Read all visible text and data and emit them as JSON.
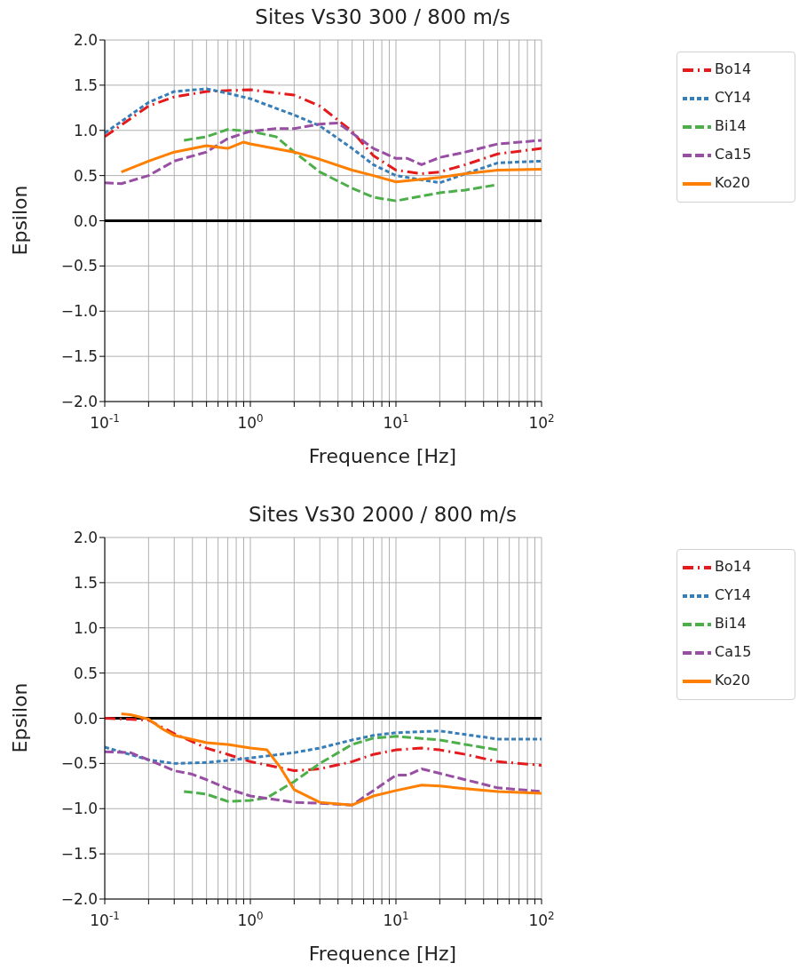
{
  "chart_data": [
    {
      "type": "line",
      "title": "Sites Vs30 300 / 800 m/s",
      "xlabel": "Frequence [Hz]",
      "ylabel": "Epsilon",
      "log": "x",
      "grid": true,
      "legend": "top right",
      "marker": "none",
      "xlim": [
        0.1,
        100
      ],
      "ylim": [
        -2,
        2
      ],
      "xticks": [
        {
          "value": 0.1,
          "label": "10$^{-1}$"
        },
        {
          "value": 0.2,
          "label": null
        },
        {
          "value": 0.3,
          "label": null
        },
        {
          "value": 0.4,
          "label": null
        },
        {
          "value": 0.5,
          "label": null
        },
        {
          "value": 0.6,
          "label": null
        },
        {
          "value": 0.7,
          "label": null
        },
        {
          "value": 0.8,
          "label": null
        },
        {
          "value": 0.9,
          "label": null
        },
        {
          "value": 1,
          "label": "10$^{0}$"
        },
        {
          "value": 2,
          "label": null
        },
        {
          "value": 3,
          "label": null
        },
        {
          "value": 4,
          "label": null
        },
        {
          "value": 5,
          "label": null
        },
        {
          "value": 6,
          "label": null
        },
        {
          "value": 7,
          "label": null
        },
        {
          "value": 8,
          "label": null
        },
        {
          "value": 9,
          "label": null
        },
        {
          "value": 10,
          "label": "10$^{1}$"
        },
        {
          "value": 20,
          "label": null
        },
        {
          "value": 30,
          "label": null
        },
        {
          "value": 40,
          "label": null
        },
        {
          "value": 50,
          "label": null
        },
        {
          "value": 60,
          "label": null
        },
        {
          "value": 70,
          "label": null
        },
        {
          "value": 80,
          "label": null
        },
        {
          "value": 90,
          "label": null
        },
        {
          "value": 100,
          "label": "10$^{2}$"
        }
      ],
      "yticks": [
        {
          "value": -2,
          "label": "−2.0"
        },
        {
          "value": -1.5,
          "label": "−1.5"
        },
        {
          "value": -1,
          "label": "−1.0"
        },
        {
          "value": -0.5,
          "label": "−0.5"
        },
        {
          "value": 0,
          "label": "0.0"
        },
        {
          "value": 0.5,
          "label": "0.5"
        },
        {
          "value": 1,
          "label": "1.0"
        },
        {
          "value": 1.5,
          "label": "1.5"
        },
        {
          "value": 2,
          "label": "2.0"
        }
      ],
      "ref_lines": [
        {
          "axis": "y",
          "value": 0,
          "label": null,
          "color": "#000000",
          "line_style": "solid"
        }
      ],
      "series": [
        {
          "name": "Bo14",
          "color": "#e41a1c",
          "line_style": "dashdot",
          "x": [
            0.1,
            0.2,
            0.3,
            0.5,
            1,
            2,
            3,
            5,
            7,
            10,
            15,
            20,
            30,
            50,
            100
          ],
          "values": [
            0.93,
            1.27,
            1.37,
            1.43,
            1.45,
            1.39,
            1.27,
            0.99,
            0.72,
            0.56,
            0.52,
            0.54,
            0.62,
            0.74,
            0.8
          ]
        },
        {
          "name": "CY14",
          "color": "#377eb8",
          "line_style": "dotted",
          "x": [
            0.1,
            0.2,
            0.3,
            0.5,
            0.7,
            1,
            2,
            3,
            5,
            7,
            10,
            20,
            30,
            50,
            100
          ],
          "values": [
            0.97,
            1.31,
            1.43,
            1.46,
            1.41,
            1.35,
            1.17,
            1.05,
            0.8,
            0.62,
            0.5,
            0.42,
            0.52,
            0.64,
            0.66
          ]
        },
        {
          "name": "Bi14",
          "color": "#4daf4a",
          "line_style": "dashed",
          "x": [
            0.35,
            0.5,
            0.7,
            1,
            1.5,
            2,
            3,
            5,
            7,
            10,
            20,
            30,
            50
          ],
          "values": [
            0.89,
            0.93,
            1.01,
            0.99,
            0.93,
            0.76,
            0.54,
            0.36,
            0.26,
            0.22,
            0.31,
            0.34,
            0.4
          ]
        },
        {
          "name": "Ca15",
          "color": "#984ea3",
          "line_style": "dashed",
          "x": [
            0.1,
            0.13,
            0.2,
            0.3,
            0.5,
            0.7,
            1,
            1.5,
            2,
            3,
            4,
            5,
            7,
            10,
            12,
            15,
            20,
            30,
            50,
            100
          ],
          "values": [
            0.42,
            0.41,
            0.5,
            0.66,
            0.76,
            0.91,
            0.99,
            1.02,
            1.02,
            1.07,
            1.08,
            0.97,
            0.8,
            0.69,
            0.69,
            0.62,
            0.7,
            0.76,
            0.85,
            0.89
          ]
        },
        {
          "name": "Ko20",
          "color": "#ff7f00",
          "line_style": "solid",
          "x": [
            0.13,
            0.2,
            0.3,
            0.5,
            0.7,
            0.9,
            1,
            2,
            3,
            5,
            7,
            10,
            20,
            30,
            50,
            100
          ],
          "values": [
            0.54,
            0.66,
            0.76,
            0.83,
            0.8,
            0.87,
            0.85,
            0.76,
            0.68,
            0.56,
            0.5,
            0.43,
            0.48,
            0.52,
            0.56,
            0.57
          ]
        }
      ]
    },
    {
      "type": "line",
      "title": "Sites Vs30 2000 / 800 m/s",
      "xlabel": "Frequence [Hz]",
      "ylabel": "Epsilon",
      "log": "x",
      "grid": true,
      "legend": "top right",
      "marker": "none",
      "xlim": [
        0.1,
        100
      ],
      "ylim": [
        -2,
        2
      ],
      "xticks": [
        {
          "value": 0.1,
          "label": "10$^{-1}$"
        },
        {
          "value": 0.2,
          "label": null
        },
        {
          "value": 0.3,
          "label": null
        },
        {
          "value": 0.4,
          "label": null
        },
        {
          "value": 0.5,
          "label": null
        },
        {
          "value": 0.6,
          "label": null
        },
        {
          "value": 0.7,
          "label": null
        },
        {
          "value": 0.8,
          "label": null
        },
        {
          "value": 0.9,
          "label": null
        },
        {
          "value": 1,
          "label": "10$^{0}$"
        },
        {
          "value": 2,
          "label": null
        },
        {
          "value": 3,
          "label": null
        },
        {
          "value": 4,
          "label": null
        },
        {
          "value": 5,
          "label": null
        },
        {
          "value": 6,
          "label": null
        },
        {
          "value": 7,
          "label": null
        },
        {
          "value": 8,
          "label": null
        },
        {
          "value": 9,
          "label": null
        },
        {
          "value": 10,
          "label": "10$^{1}$"
        },
        {
          "value": 20,
          "label": null
        },
        {
          "value": 30,
          "label": null
        },
        {
          "value": 40,
          "label": null
        },
        {
          "value": 50,
          "label": null
        },
        {
          "value": 60,
          "label": null
        },
        {
          "value": 70,
          "label": null
        },
        {
          "value": 80,
          "label": null
        },
        {
          "value": 90,
          "label": null
        },
        {
          "value": 100,
          "label": "10$^{2}$"
        }
      ],
      "yticks": [
        {
          "value": -2,
          "label": "−2.0"
        },
        {
          "value": -1.5,
          "label": "−1.5"
        },
        {
          "value": -1,
          "label": "−1.0"
        },
        {
          "value": -0.5,
          "label": "−0.5"
        },
        {
          "value": 0,
          "label": "0.0"
        },
        {
          "value": 0.5,
          "label": "0.5"
        },
        {
          "value": 1,
          "label": "1.0"
        },
        {
          "value": 1.5,
          "label": "1.5"
        },
        {
          "value": 2,
          "label": "2.0"
        }
      ],
      "ref_lines": [
        {
          "axis": "y",
          "value": 0,
          "label": null,
          "color": "#000000",
          "line_style": "solid"
        }
      ],
      "series": [
        {
          "name": "Bo14",
          "color": "#e41a1c",
          "line_style": "dashdot",
          "x": [
            0.1,
            0.2,
            0.3,
            0.5,
            0.7,
            1,
            2,
            3,
            5,
            7,
            10,
            15,
            20,
            30,
            50,
            100
          ],
          "values": [
            0,
            -0.02,
            -0.17,
            -0.33,
            -0.4,
            -0.48,
            -0.58,
            -0.56,
            -0.48,
            -0.4,
            -0.35,
            -0.33,
            -0.35,
            -0.4,
            -0.48,
            -0.52
          ]
        },
        {
          "name": "CY14",
          "color": "#377eb8",
          "line_style": "dotted",
          "x": [
            0.1,
            0.2,
            0.3,
            0.5,
            1,
            2,
            3,
            5,
            7,
            10,
            20,
            30,
            50,
            100
          ],
          "values": [
            -0.32,
            -0.46,
            -0.5,
            -0.49,
            -0.44,
            -0.38,
            -0.33,
            -0.24,
            -0.19,
            -0.16,
            -0.14,
            -0.18,
            -0.23,
            -0.23
          ]
        },
        {
          "name": "Bi14",
          "color": "#4daf4a",
          "line_style": "dashed",
          "x": [
            0.35,
            0.5,
            0.7,
            1,
            1.3,
            2,
            3,
            5,
            7,
            10,
            20,
            30,
            50
          ],
          "values": [
            -0.81,
            -0.84,
            -0.92,
            -0.91,
            -0.88,
            -0.7,
            -0.5,
            -0.29,
            -0.22,
            -0.2,
            -0.24,
            -0.29,
            -0.35
          ]
        },
        {
          "name": "Ca15",
          "color": "#984ea3",
          "line_style": "dashed",
          "x": [
            0.1,
            0.15,
            0.2,
            0.3,
            0.4,
            0.5,
            0.7,
            1,
            2,
            3,
            5,
            7,
            10,
            12,
            15,
            20,
            30,
            50,
            100
          ],
          "values": [
            -0.37,
            -0.38,
            -0.46,
            -0.58,
            -0.62,
            -0.68,
            -0.78,
            -0.86,
            -0.93,
            -0.94,
            -0.96,
            -0.8,
            -0.63,
            -0.63,
            -0.56,
            -0.61,
            -0.68,
            -0.77,
            -0.81
          ]
        },
        {
          "name": "Ko20",
          "color": "#ff7f00",
          "line_style": "solid",
          "x": [
            0.13,
            0.15,
            0.2,
            0.25,
            0.3,
            0.5,
            0.7,
            1,
            1.3,
            1.6,
            2,
            3,
            5,
            7,
            10,
            15,
            20,
            30,
            50,
            100
          ],
          "values": [
            0.05,
            0.04,
            -0.01,
            -0.12,
            -0.19,
            -0.27,
            -0.29,
            -0.33,
            -0.35,
            -0.54,
            -0.79,
            -0.93,
            -0.96,
            -0.86,
            -0.8,
            -0.74,
            -0.75,
            -0.78,
            -0.81,
            -0.83
          ]
        }
      ]
    }
  ]
}
